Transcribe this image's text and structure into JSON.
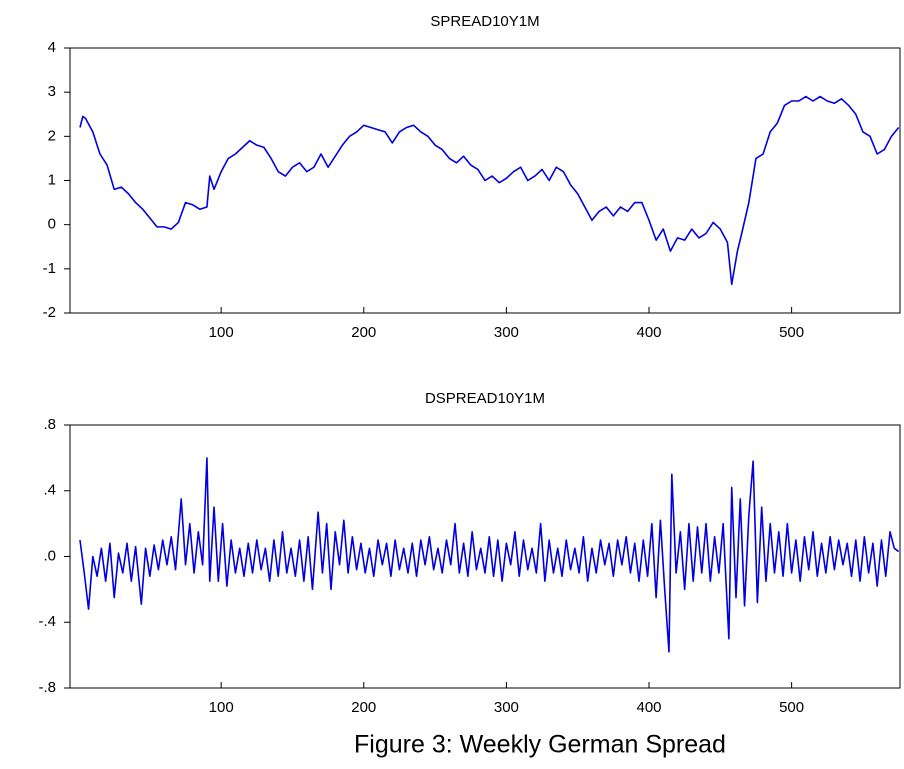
{
  "chart_data": [
    {
      "type": "line",
      "title": "SPREAD10Y1M",
      "x": [
        1,
        3,
        5,
        10,
        15,
        20,
        25,
        30,
        35,
        40,
        45,
        50,
        55,
        60,
        65,
        70,
        75,
        80,
        85,
        90,
        92,
        95,
        100,
        105,
        110,
        115,
        120,
        125,
        130,
        135,
        140,
        145,
        150,
        155,
        160,
        165,
        170,
        175,
        180,
        185,
        190,
        195,
        200,
        205,
        210,
        215,
        220,
        225,
        230,
        235,
        240,
        245,
        250,
        255,
        260,
        265,
        270,
        275,
        280,
        285,
        290,
        295,
        300,
        305,
        310,
        315,
        320,
        325,
        330,
        335,
        340,
        345,
        350,
        355,
        360,
        365,
        370,
        375,
        380,
        385,
        390,
        395,
        400,
        405,
        410,
        415,
        420,
        425,
        430,
        435,
        440,
        445,
        450,
        455,
        458,
        462,
        465,
        470,
        475,
        480,
        485,
        490,
        495,
        500,
        505,
        510,
        515,
        520,
        525,
        530,
        535,
        540,
        545,
        550,
        555,
        560,
        565,
        570,
        575
      ],
      "series": [
        {
          "color": "#0000e0",
          "values": [
            2.2,
            2.45,
            2.4,
            2.1,
            1.6,
            1.35,
            0.8,
            0.85,
            0.7,
            0.5,
            0.35,
            0.15,
            -0.05,
            -0.05,
            -0.1,
            0.05,
            0.5,
            0.45,
            0.35,
            0.4,
            1.1,
            0.8,
            1.2,
            1.5,
            1.6,
            1.75,
            1.9,
            1.8,
            1.75,
            1.5,
            1.2,
            1.1,
            1.3,
            1.4,
            1.2,
            1.3,
            1.6,
            1.3,
            1.55,
            1.8,
            2.0,
            2.1,
            2.25,
            2.2,
            2.15,
            2.1,
            1.85,
            2.1,
            2.2,
            2.25,
            2.1,
            2.0,
            1.8,
            1.7,
            1.5,
            1.4,
            1.55,
            1.35,
            1.25,
            1.0,
            1.1,
            0.95,
            1.05,
            1.2,
            1.3,
            1.0,
            1.1,
            1.25,
            1.0,
            1.3,
            1.2,
            0.9,
            0.7,
            0.4,
            0.1,
            0.3,
            0.4,
            0.2,
            0.4,
            0.3,
            0.5,
            0.5,
            0.1,
            -0.35,
            -0.1,
            -0.6,
            -0.3,
            -0.35,
            -0.1,
            -0.3,
            -0.2,
            0.05,
            -0.1,
            -0.4,
            -1.35,
            -0.6,
            -0.2,
            0.5,
            1.5,
            1.6,
            2.1,
            2.3,
            2.7,
            2.8,
            2.8,
            2.9,
            2.8,
            2.9,
            2.8,
            2.75,
            2.85,
            2.7,
            2.5,
            2.1,
            2.0,
            1.6,
            1.7,
            2.0,
            2.2
          ]
        }
      ],
      "xlim": [
        -6,
        576
      ],
      "xticks": [
        100,
        200,
        300,
        400,
        500
      ],
      "ylim": [
        -2,
        4
      ],
      "yticks": [
        -2,
        -1,
        0,
        1,
        2,
        3,
        4
      ]
    },
    {
      "type": "line",
      "title": "DSPREAD10Y1M",
      "x": [
        1,
        4,
        7,
        10,
        13,
        16,
        19,
        22,
        25,
        28,
        31,
        34,
        37,
        40,
        44,
        47,
        50,
        53,
        56,
        59,
        62,
        65,
        68,
        72,
        75,
        78,
        81,
        84,
        87,
        90,
        92,
        95,
        98,
        101,
        104,
        107,
        110,
        113,
        116,
        119,
        122,
        125,
        128,
        131,
        134,
        137,
        140,
        143,
        146,
        149,
        152,
        155,
        158,
        161,
        164,
        168,
        171,
        174,
        177,
        180,
        183,
        186,
        189,
        192,
        195,
        198,
        201,
        204,
        207,
        210,
        213,
        216,
        219,
        222,
        225,
        228,
        231,
        234,
        237,
        240,
        243,
        246,
        249,
        252,
        255,
        258,
        261,
        264,
        267,
        270,
        273,
        276,
        279,
        282,
        285,
        288,
        291,
        294,
        297,
        300,
        303,
        306,
        309,
        312,
        315,
        318,
        321,
        324,
        327,
        330,
        333,
        336,
        339,
        342,
        345,
        348,
        351,
        354,
        357,
        360,
        363,
        366,
        369,
        372,
        375,
        378,
        381,
        384,
        387,
        390,
        393,
        396,
        399,
        402,
        405,
        408,
        411,
        414,
        416,
        419,
        422,
        425,
        428,
        431,
        434,
        437,
        440,
        443,
        446,
        449,
        452,
        456,
        458,
        461,
        464,
        467,
        470,
        473,
        476,
        479,
        482,
        485,
        488,
        491,
        494,
        497,
        500,
        503,
        506,
        509,
        512,
        515,
        518,
        521,
        524,
        527,
        530,
        533,
        536,
        539,
        542,
        545,
        548,
        551,
        554,
        557,
        560,
        563,
        566,
        569,
        572,
        575
      ],
      "series": [
        {
          "color": "#0000e0",
          "values": [
            0.1,
            -0.1,
            -0.32,
            0.0,
            -0.12,
            0.05,
            -0.15,
            0.08,
            -0.25,
            0.02,
            -0.1,
            0.08,
            -0.15,
            0.06,
            -0.29,
            0.05,
            -0.12,
            0.07,
            -0.08,
            0.1,
            -0.05,
            0.12,
            -0.08,
            0.35,
            -0.05,
            0.2,
            -0.1,
            0.15,
            -0.05,
            0.6,
            -0.15,
            0.3,
            -0.15,
            0.2,
            -0.18,
            0.1,
            -0.1,
            0.05,
            -0.12,
            0.08,
            -0.1,
            0.1,
            -0.08,
            0.05,
            -0.15,
            0.1,
            -0.12,
            0.15,
            -0.1,
            0.05,
            -0.12,
            0.1,
            -0.15,
            0.12,
            -0.2,
            0.27,
            -0.1,
            0.2,
            -0.2,
            0.15,
            -0.05,
            0.22,
            -0.1,
            0.12,
            -0.08,
            0.08,
            -0.1,
            0.05,
            -0.12,
            0.1,
            -0.05,
            0.08,
            -0.12,
            0.1,
            -0.08,
            0.05,
            -0.1,
            0.08,
            -0.12,
            0.1,
            -0.05,
            0.12,
            -0.08,
            0.05,
            -0.1,
            0.1,
            -0.05,
            0.2,
            -0.1,
            0.08,
            -0.12,
            0.15,
            -0.08,
            0.05,
            -0.1,
            0.12,
            -0.12,
            0.1,
            -0.15,
            0.08,
            -0.05,
            0.15,
            -0.12,
            0.1,
            -0.08,
            0.05,
            -0.1,
            0.2,
            -0.15,
            0.1,
            -0.1,
            0.05,
            -0.12,
            0.1,
            -0.08,
            0.05,
            -0.1,
            0.12,
            -0.15,
            0.05,
            -0.1,
            0.1,
            -0.05,
            0.08,
            -0.12,
            0.1,
            -0.05,
            0.12,
            -0.1,
            0.08,
            -0.15,
            0.1,
            -0.12,
            0.2,
            -0.25,
            0.22,
            -0.2,
            -0.58,
            0.5,
            -0.1,
            0.15,
            -0.2,
            0.2,
            -0.15,
            0.18,
            -0.1,
            0.2,
            -0.15,
            0.12,
            -0.1,
            0.2,
            -0.5,
            0.42,
            -0.25,
            0.35,
            -0.3,
            0.25,
            0.58,
            -0.28,
            0.3,
            -0.15,
            0.2,
            -0.1,
            0.15,
            -0.12,
            0.2,
            -0.1,
            0.1,
            -0.15,
            0.12,
            -0.08,
            0.15,
            -0.12,
            0.08,
            -0.1,
            0.12,
            -0.08,
            0.1,
            -0.05,
            0.08,
            -0.12,
            0.1,
            -0.15,
            0.12,
            -0.1,
            0.08,
            -0.18,
            0.1,
            -0.12,
            0.15,
            0.05,
            0.03
          ]
        }
      ],
      "xlim": [
        -6,
        576
      ],
      "xticks": [
        100,
        200,
        300,
        400,
        500
      ],
      "ylim": [
        -0.8,
        0.8
      ],
      "yticks": [
        {
          "value": -0.8,
          "label": "-.8"
        },
        {
          "value": -0.4,
          "label": "-.4"
        },
        {
          "value": 0,
          "label": ".0"
        },
        {
          "value": 0.4,
          "label": ".4"
        },
        {
          "value": 0.8,
          "label": ".8"
        }
      ]
    }
  ],
  "caption": "Figure 3: Weekly German Spread"
}
